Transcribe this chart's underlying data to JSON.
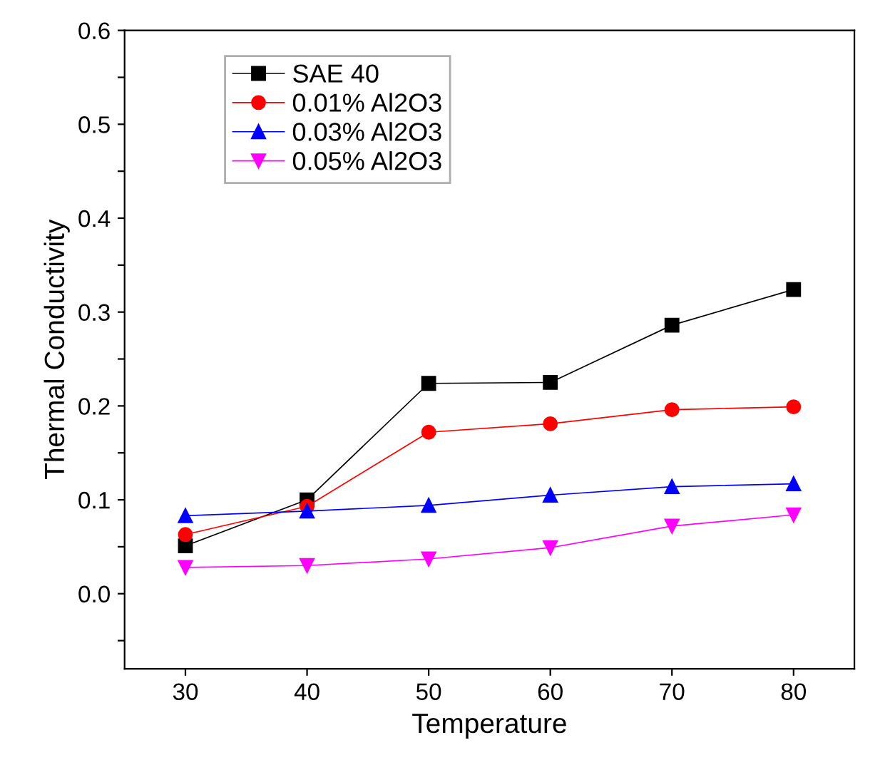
{
  "chart_data": {
    "type": "line",
    "xlabel": "Temperature",
    "ylabel": "Thermal Conductivity",
    "x": [
      30,
      40,
      50,
      60,
      70,
      80
    ],
    "series": [
      {
        "name": "SAE 40",
        "color": "#000000",
        "marker": "square",
        "values": [
          0.051,
          0.1,
          0.224,
          0.225,
          0.286,
          0.324
        ]
      },
      {
        "name": "0.01% Al2O3",
        "color": "#ff0000",
        "marker": "circle",
        "values": [
          0.063,
          0.093,
          0.172,
          0.181,
          0.196,
          0.199
        ]
      },
      {
        "name": "0.03% Al2O3",
        "color": "#0000ff",
        "marker": "triangle",
        "values": [
          0.083,
          0.088,
          0.094,
          0.105,
          0.114,
          0.117
        ]
      },
      {
        "name": "0.05% Al2O3",
        "color": "#ff00ff",
        "marker": "triangle_down",
        "values": [
          0.028,
          0.03,
          0.037,
          0.049,
          0.072,
          0.084
        ]
      }
    ],
    "xlim": [
      25,
      85
    ],
    "xticks": [
      30,
      40,
      50,
      60,
      70,
      80
    ],
    "ylim": [
      -0.08,
      0.6
    ],
    "yticks": [
      {
        "value": -0.05,
        "label": null
      },
      {
        "value": 0,
        "label": "0.0"
      },
      {
        "value": 0.05,
        "label": null
      },
      0.1,
      {
        "value": 0.15,
        "label": null
      },
      0.2,
      {
        "value": 0.25,
        "label": null
      },
      0.3,
      {
        "value": 0.35,
        "label": null
      },
      0.4,
      {
        "value": 0.45,
        "label": null
      },
      0.5,
      {
        "value": 0.55,
        "label": null
      },
      0.6
    ],
    "grid": false,
    "legend": "top left",
    "line_style": "solid"
  }
}
